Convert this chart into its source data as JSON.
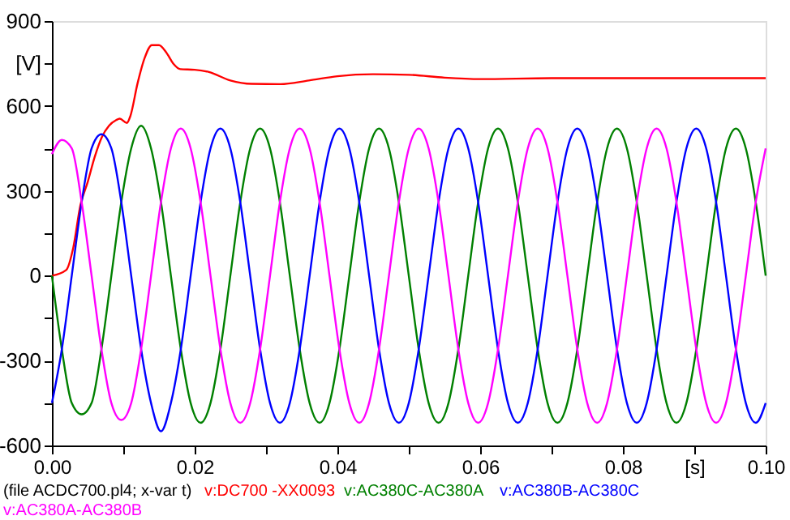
{
  "chart_data": {
    "type": "line",
    "x": [
      0,
      0.00139,
      0.00278,
      0.00417,
      0.00556,
      0.00694,
      0.00833,
      0.00972,
      0.01111,
      0.0125,
      0.01389,
      0.01528,
      0.01667,
      0.01806,
      0.01944,
      0.02083,
      0.02222,
      0.02361,
      0.025,
      0.02639,
      0.02778,
      0.02917,
      0.03056,
      0.03194,
      0.03333,
      0.03472,
      0.03611,
      0.0375,
      0.03889,
      0.04028,
      0.04167,
      0.04306,
      0.04444,
      0.04583,
      0.04722,
      0.04861,
      0.05,
      0.05139,
      0.05278,
      0.05417,
      0.05556,
      0.05694,
      0.05833,
      0.05972,
      0.06111,
      0.0625,
      0.06389,
      0.06528,
      0.06667,
      0.06806,
      0.06944,
      0.07083,
      0.07222,
      0.07361,
      0.075,
      0.07639,
      0.07778,
      0.07917,
      0.08056,
      0.08194,
      0.08333,
      0.08472,
      0.08611,
      0.0875,
      0.08889,
      0.09028,
      0.09167,
      0.09306,
      0.09444,
      0.09583,
      0.09722,
      0.09861,
      0.1
    ],
    "series": [
      {
        "name": "v:DC700 -XX0093",
        "color": "#ff0000",
        "x": [
          0,
          0.002,
          0.003,
          0.004,
          0.005,
          0.006,
          0.007,
          0.008,
          0.009,
          0.0095,
          0.0105,
          0.011,
          0.012,
          0.013,
          0.014,
          0.015,
          0.016,
          0.017,
          0.018,
          0.02,
          0.022,
          0.025,
          0.028,
          0.032,
          0.036,
          0.04,
          0.045,
          0.05,
          0.055,
          0.06,
          0.07,
          0.08,
          0.1
        ],
        "values": [
          0,
          20,
          100,
          250,
          330,
          420,
          490,
          530,
          550,
          555,
          540,
          565,
          680,
          770,
          815,
          815,
          790,
          750,
          730,
          728,
          720,
          690,
          678,
          677,
          690,
          705,
          712,
          710,
          700,
          695,
          698,
          698,
          698
        ]
      },
      {
        "name": "v:AC380C-AC380A",
        "color": "#008000",
        "values": [
          0,
          -260,
          -450,
          -490,
          -450,
          -260,
          0,
          260,
          450,
          530,
          450,
          260,
          0,
          -260,
          -450,
          -520,
          -450,
          -260,
          0,
          260,
          450,
          520,
          450,
          260,
          0,
          -260,
          -450,
          -520,
          -450,
          -260,
          0,
          260,
          450,
          520,
          450,
          260,
          0,
          -260,
          -450,
          -520,
          -450,
          -260,
          0,
          260,
          450,
          520,
          450,
          260,
          0,
          -260,
          -450,
          -520,
          -450,
          -260,
          0,
          260,
          450,
          520,
          450,
          260,
          0,
          -260,
          -450,
          -520,
          -450,
          -260,
          0,
          260,
          450,
          520,
          450,
          260,
          0
        ]
      },
      {
        "name": "v:AC380B-AC380C",
        "color": "#0000ff",
        "values": [
          -450,
          -260,
          0,
          260,
          450,
          500,
          450,
          260,
          0,
          -260,
          -450,
          -550,
          -450,
          -260,
          0,
          260,
          450,
          520,
          450,
          260,
          0,
          -260,
          -450,
          -520,
          -450,
          -260,
          0,
          260,
          450,
          520,
          450,
          260,
          0,
          -260,
          -450,
          -520,
          -450,
          -260,
          0,
          260,
          450,
          520,
          450,
          260,
          0,
          -260,
          -450,
          -520,
          -450,
          -260,
          0,
          260,
          450,
          520,
          450,
          260,
          0,
          -260,
          -450,
          -520,
          -450,
          -260,
          0,
          260,
          450,
          520,
          450,
          260,
          0,
          -260,
          -450,
          -520,
          -450
        ]
      },
      {
        "name": "v:AC380A-AC380B",
        "color": "#ff00ff",
        "values": [
          430,
          480,
          450,
          260,
          0,
          -260,
          -450,
          -510,
          -450,
          -260,
          0,
          260,
          450,
          520,
          450,
          260,
          0,
          -260,
          -450,
          -520,
          -450,
          -260,
          0,
          260,
          450,
          520,
          450,
          260,
          0,
          -260,
          -450,
          -520,
          -450,
          -260,
          0,
          260,
          450,
          520,
          450,
          260,
          0,
          -260,
          -450,
          -520,
          -450,
          -260,
          0,
          260,
          450,
          520,
          450,
          260,
          0,
          -260,
          -450,
          -520,
          -450,
          -260,
          0,
          260,
          450,
          520,
          450,
          260,
          0,
          -260,
          -450,
          -520,
          -450,
          -260,
          0,
          260,
          450
        ]
      }
    ],
    "xlim": [
      0,
      0.1
    ],
    "xticks": [
      {
        "value": 0,
        "label": "0.00"
      },
      {
        "value": 0.01,
        "label": null
      },
      0.02,
      {
        "value": 0.03,
        "label": null
      },
      0.04,
      {
        "value": 0.05,
        "label": null
      },
      0.06,
      {
        "value": 0.07,
        "label": null
      },
      0.08,
      {
        "value": 0.09,
        "label": "[s]"
      },
      {
        "value": 0.1,
        "label": "0.10"
      }
    ],
    "ylim": [
      -600,
      900
    ],
    "yticks": [
      -600,
      {
        "value": -450,
        "label": null
      },
      -300,
      {
        "value": -150,
        "label": null
      },
      0,
      {
        "value": 150,
        "label": null
      },
      300,
      {
        "value": 450,
        "label": null
      },
      600,
      {
        "value": 750,
        "label": "[V]"
      },
      900
    ],
    "annotations": [
      "(file ACDC700.pl4; x-var t)"
    ],
    "legend": "bottom",
    "grid": false,
    "marker": "none",
    "line_style": "solid"
  }
}
